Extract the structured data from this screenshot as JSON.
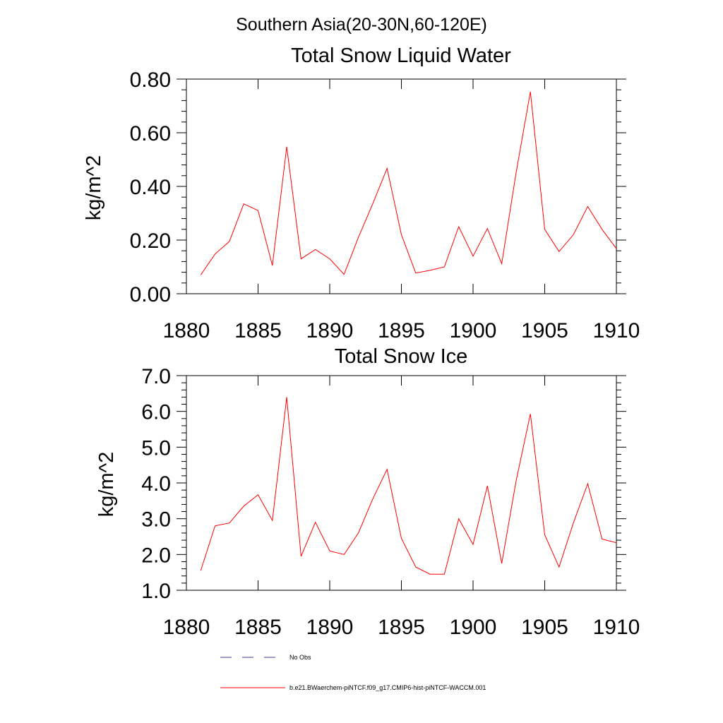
{
  "figure": {
    "suptitle": "Southern Asia(20-30N,60-120E)",
    "legend": [
      {
        "label": "No Obs",
        "style": "dashed",
        "color": "#3b3b8f"
      },
      {
        "label": "b.e21.BWaerchem-piNTCF.f09_g17.CMIP6-hist-piNTCF-WACCM.001",
        "style": "solid",
        "color": "#ff0000"
      }
    ]
  },
  "chart_data": [
    {
      "type": "line",
      "title": "Total Snow Liquid Water",
      "xlabel": "",
      "ylabel": "kg/m^2",
      "xlim": [
        1880,
        1910
      ],
      "ylim": [
        0,
        0.8
      ],
      "xticks": [
        1880,
        1885,
        1890,
        1895,
        1900,
        1905,
        1910
      ],
      "xtick_labels": [
        "1880",
        "1885",
        "1890",
        "1895",
        "1900",
        "1905",
        "1910"
      ],
      "yticks": [
        0,
        0.2,
        0.4,
        0.6,
        0.8
      ],
      "ytick_labels": [
        "0.00",
        "0.20",
        "0.40",
        "0.60",
        "0.80"
      ],
      "grid": false,
      "series": [
        {
          "color": "#ff0000",
          "x": [
            1881,
            1882,
            1883,
            1884,
            1885,
            1886,
            1887,
            1888,
            1889,
            1890,
            1891,
            1892,
            1893,
            1894,
            1895,
            1896,
            1897,
            1898,
            1899,
            1900,
            1901,
            1902,
            1903,
            1904,
            1905,
            1906,
            1907,
            1908,
            1909,
            1910
          ],
          "values": [
            0.07,
            0.148,
            0.195,
            0.335,
            0.31,
            0.105,
            0.548,
            0.13,
            0.165,
            0.13,
            0.072,
            0.21,
            0.335,
            0.467,
            0.22,
            0.077,
            0.087,
            0.1,
            0.25,
            0.14,
            0.243,
            0.112,
            0.45,
            0.753,
            0.24,
            0.157,
            0.22,
            0.325,
            0.24,
            0.168
          ]
        }
      ]
    },
    {
      "type": "line",
      "title": "Total Snow Ice",
      "xlabel": "",
      "ylabel": "kg/m^2",
      "xlim": [
        1880,
        1910
      ],
      "ylim": [
        1,
        7
      ],
      "xticks": [
        1880,
        1885,
        1890,
        1895,
        1900,
        1905,
        1910
      ],
      "xtick_labels": [
        "1880",
        "1885",
        "1890",
        "1895",
        "1900",
        "1905",
        "1910"
      ],
      "yticks": [
        1,
        2,
        3,
        4,
        5,
        6,
        7
      ],
      "ytick_labels": [
        "1.0",
        "2.0",
        "3.0",
        "4.0",
        "5.0",
        "6.0",
        "7.0"
      ],
      "grid": false,
      "series": [
        {
          "color": "#ff0000",
          "x": [
            1881,
            1882,
            1883,
            1884,
            1885,
            1886,
            1887,
            1888,
            1889,
            1890,
            1891,
            1892,
            1893,
            1894,
            1895,
            1896,
            1897,
            1898,
            1899,
            1900,
            1901,
            1902,
            1903,
            1904,
            1905,
            1906,
            1907,
            1908,
            1909,
            1910
          ],
          "values": [
            1.55,
            2.8,
            2.88,
            3.35,
            3.67,
            2.95,
            6.4,
            1.95,
            2.9,
            2.1,
            2.0,
            2.6,
            3.55,
            4.38,
            2.45,
            1.65,
            1.45,
            1.45,
            3.0,
            2.28,
            3.92,
            1.75,
            4.05,
            5.93,
            2.55,
            1.65,
            2.88,
            3.98,
            2.43,
            2.33
          ]
        }
      ]
    }
  ]
}
